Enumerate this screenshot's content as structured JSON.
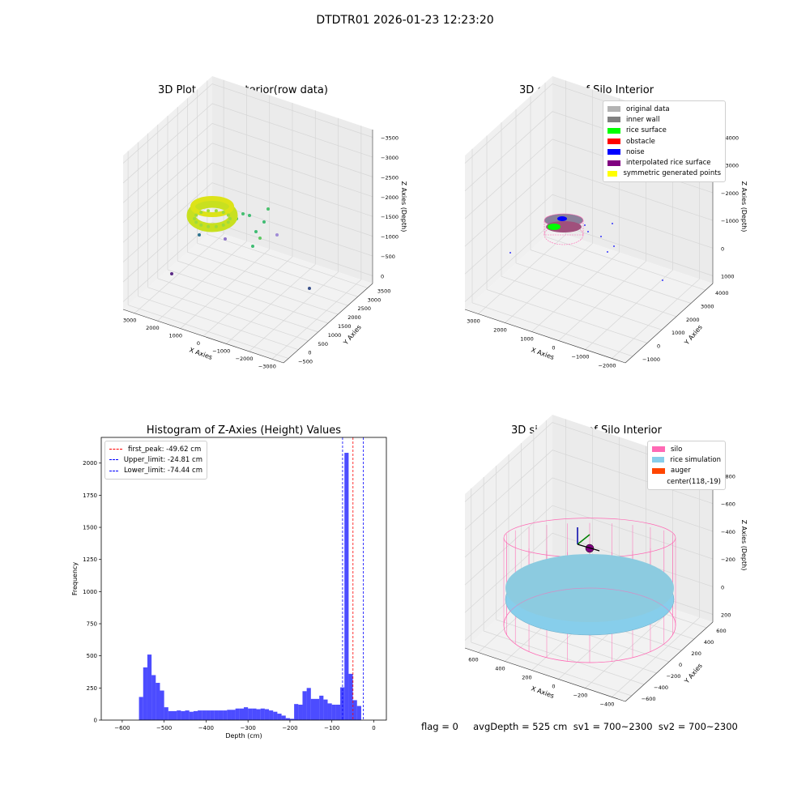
{
  "suptitle": "DTDTR01 2026-01-23 12:23:20",
  "footer": "flag = 0     avgDepth = 525 cm  sv1 = 700~2300  sv2 = 700~2300",
  "chart_data": [
    {
      "type": "scatter",
      "subtype": "3d",
      "title": "3D Plot of Silo Interior(row data)",
      "xlabel": "X Axies",
      "ylabel": "Y Axies",
      "zlabel": "Z Axies (Depth)",
      "x_ticks": [
        "−3000",
        "−2000",
        "−1000",
        "0",
        "1000",
        "2000",
        "3000"
      ],
      "y_ticks": [
        "−500",
        "0",
        "500",
        "1000",
        "1500",
        "2000",
        "2500",
        "3000",
        "3500"
      ],
      "z_ticks": [
        "0",
        "−500",
        "−1000",
        "−1500",
        "−2000",
        "−2500",
        "−3000",
        "−3500"
      ],
      "colormap": "viridis"
    },
    {
      "type": "scatter",
      "subtype": "3d",
      "title": "3D classify of Silo Interior",
      "xlabel": "X Axies",
      "ylabel": "Y Axies",
      "zlabel": "Z Axies (Depth)",
      "x_ticks": [
        "−2000",
        "−1000",
        "0",
        "1000",
        "2000",
        "3000"
      ],
      "y_ticks": [
        "−1000",
        "0",
        "1000",
        "2000",
        "3000",
        "4000"
      ],
      "z_ticks": [
        "1000",
        "0",
        "−1000",
        "−2000",
        "−3000",
        "−4000"
      ],
      "legend": [
        {
          "label": "original data",
          "color": "#b3b3b3"
        },
        {
          "label": "inner wall",
          "color": "#808080"
        },
        {
          "label": "rice surface",
          "color": "#00ff00"
        },
        {
          "label": "obstacle",
          "color": "#ff0000"
        },
        {
          "label": "noise",
          "color": "#0000ff"
        },
        {
          "label": "interpolated rice surface",
          "color": "#800080"
        },
        {
          "label": "symmetric generated points",
          "color": "#ffff00"
        }
      ],
      "legend_loc": "upper right"
    },
    {
      "type": "bar",
      "subtype": "histogram",
      "title": "Histogram of Z-Axies (Height) Values",
      "xlabel": "Depth (cm)",
      "ylabel": "Frequency",
      "xlim": [
        -650,
        30
      ],
      "ylim": [
        0,
        2200
      ],
      "x_ticks": [
        "−600",
        "−500",
        "−400",
        "−300",
        "−200",
        "−100",
        "0"
      ],
      "y_ticks": [
        "0",
        "250",
        "500",
        "750",
        "1000",
        "1250",
        "1500",
        "1750",
        "2000"
      ],
      "bin_width": 10,
      "bar_color": "#0000ff",
      "bins_left": [
        -560,
        -550,
        -540,
        -530,
        -520,
        -510,
        -500,
        -490,
        -480,
        -470,
        -460,
        -450,
        -440,
        -430,
        -420,
        -410,
        -400,
        -390,
        -380,
        -370,
        -360,
        -350,
        -340,
        -330,
        -320,
        -310,
        -300,
        -290,
        -280,
        -270,
        -260,
        -250,
        -240,
        -230,
        -220,
        -210,
        -200,
        -190,
        -180,
        -170,
        -160,
        -150,
        -140,
        -130,
        -120,
        -110,
        -100,
        -90,
        -80,
        -70,
        -60,
        -50,
        -40,
        -30,
        -20,
        -10
      ],
      "values": [
        180,
        410,
        510,
        350,
        290,
        230,
        100,
        70,
        70,
        75,
        70,
        75,
        65,
        70,
        75,
        75,
        75,
        75,
        75,
        75,
        75,
        80,
        80,
        90,
        90,
        100,
        90,
        90,
        85,
        90,
        85,
        75,
        65,
        50,
        35,
        15,
        10,
        125,
        120,
        225,
        250,
        165,
        165,
        190,
        160,
        130,
        120,
        120,
        255,
        2080,
        360,
        155,
        110,
        0,
        0,
        0
      ],
      "vlines": [
        {
          "label": "first_peak: -49.62 cm",
          "x": -49.62,
          "color": "#ff0000"
        },
        {
          "label": "Upper_limit: -24.81 cm",
          "x": -24.81,
          "color": "#0000ff"
        },
        {
          "label": "Lower_limit: -74.44 cm",
          "x": -74.44,
          "color": "#0000ff"
        }
      ],
      "legend_loc": "upper left"
    },
    {
      "type": "scatter",
      "subtype": "3d-surface",
      "title": "3D simulation of Silo Interior",
      "xlabel": "X Axies",
      "ylabel": "Y Axies",
      "zlabel": "Z Axies (Depth)",
      "x_ticks": [
        "−400",
        "−200",
        "0",
        "200",
        "400",
        "600"
      ],
      "y_ticks": [
        "−600",
        "−400",
        "−200",
        "0",
        "200",
        "400",
        "600"
      ],
      "z_ticks": [
        "200",
        "0",
        "−200",
        "−400",
        "−600",
        "−800"
      ],
      "legend": [
        {
          "label": "silo",
          "color": "#ff69b4"
        },
        {
          "label": "rice simulation",
          "color": "#87ceeb"
        },
        {
          "label": "auger",
          "color": "#ff4500"
        },
        {
          "label": "center(118,-19)",
          "color": ""
        }
      ],
      "legend_loc": "upper right"
    }
  ]
}
